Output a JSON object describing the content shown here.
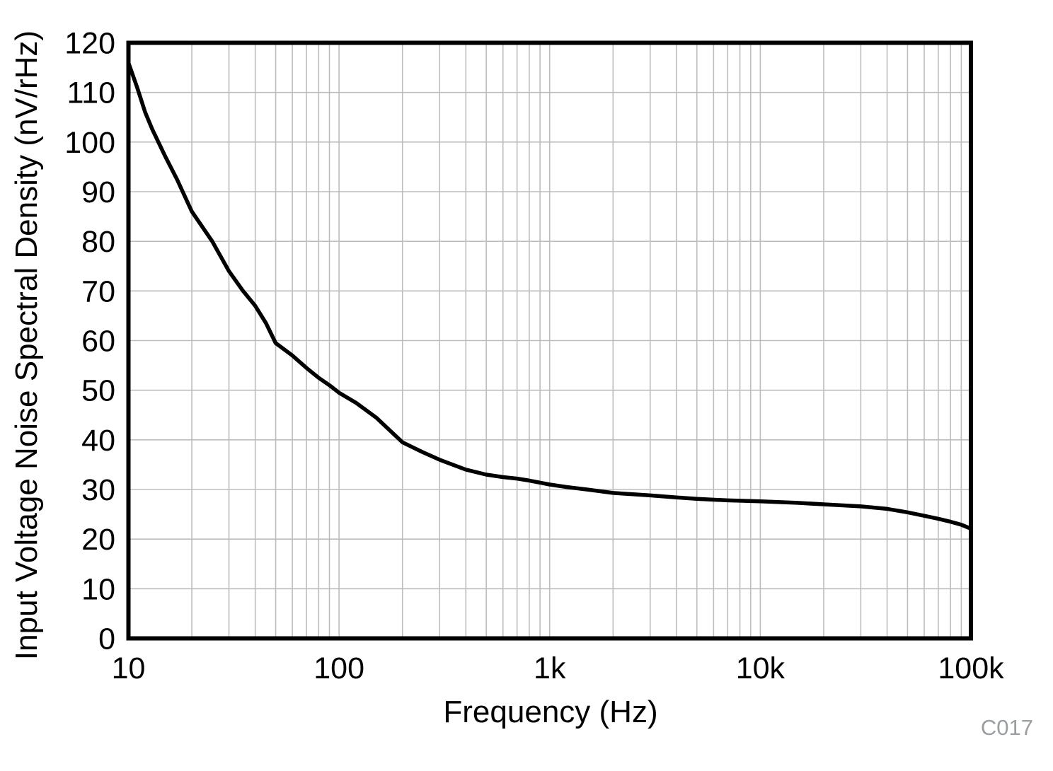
{
  "figure": {
    "background": "#ffffff"
  },
  "chart_data": {
    "type": "line",
    "title": "",
    "xlabel": "Frequency (Hz)",
    "ylabel": "Input Voltage Noise Spectral Density (nV/rHz)",
    "annotation": "C017",
    "x_scale": "log",
    "y_scale": "linear",
    "xlim": [
      10,
      100000
    ],
    "ylim": [
      0,
      120
    ],
    "grid": {
      "color": "#bdbdbd",
      "minor_log_verticals": true,
      "y_step": 10
    },
    "curve_color": "#000000",
    "x_tick_values": [
      10,
      100,
      1000,
      10000,
      100000
    ],
    "x_tick_labels": [
      "10",
      "100",
      "1k",
      "10k",
      "100k"
    ],
    "y_tick_values": [
      0,
      10,
      20,
      30,
      40,
      50,
      60,
      70,
      80,
      90,
      100,
      110,
      120
    ],
    "y_tick_labels": [
      "0",
      "10",
      "20",
      "30",
      "40",
      "50",
      "60",
      "70",
      "80",
      "90",
      "100",
      "110",
      "120"
    ],
    "series": [
      {
        "name": "input-voltage-noise-spectral-density",
        "x": [
          10,
          11,
          12,
          13,
          15,
          17,
          20,
          25,
          30,
          35,
          40,
          45,
          50,
          60,
          70,
          80,
          90,
          100,
          120,
          150,
          200,
          250,
          300,
          400,
          500,
          600,
          700,
          800,
          1000,
          1200,
          1500,
          2000,
          3000,
          4000,
          5000,
          7000,
          10000,
          15000,
          20000,
          30000,
          40000,
          50000,
          60000,
          70000,
          80000,
          90000,
          100000
        ],
        "y": [
          116,
          111,
          106,
          102.5,
          97,
          92.5,
          86,
          80,
          74,
          70,
          67,
          63.5,
          59.5,
          57,
          54.5,
          52.5,
          51,
          49.5,
          47.5,
          44.5,
          39.5,
          37.5,
          36,
          34,
          33,
          32.5,
          32.2,
          31.8,
          31,
          30.5,
          30,
          29.3,
          28.8,
          28.4,
          28.1,
          27.8,
          27.6,
          27.3,
          27,
          26.6,
          26.1,
          25.4,
          24.7,
          24.1,
          23.5,
          22.9,
          22.1
        ]
      }
    ]
  }
}
